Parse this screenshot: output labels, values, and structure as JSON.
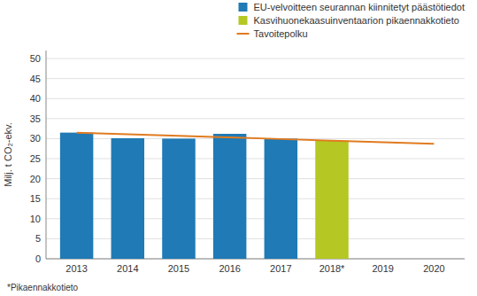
{
  "chart_data": {
    "type": "bar",
    "x": [
      2013,
      2014,
      2015,
      2016,
      2017,
      2018,
      2019,
      2020
    ],
    "series": [
      {
        "name": "EU-velvoitteen seurannan kiinnitetyt päästötiedot",
        "type": "bar",
        "color": "#1f7ab5",
        "values": [
          31.5,
          30.1,
          30.0,
          31.2,
          30.0,
          null,
          null,
          null
        ]
      },
      {
        "name": "Kasvihuonekaasuinventaarion pikaennakkotieto",
        "type": "bar",
        "color": "#b5c722",
        "values": [
          null,
          null,
          null,
          null,
          null,
          29.5,
          null,
          null
        ]
      },
      {
        "name": "Tavoitepolku",
        "type": "line",
        "color": "#e07b20",
        "values": [
          31.5,
          31.1,
          30.7,
          30.3,
          29.9,
          29.5,
          29.1,
          28.7
        ]
      }
    ],
    "y_label": "Milj. t CO₂-ekv.",
    "xlim": [
      2012.4,
      2020.6
    ],
    "xticks": [
      2013,
      2014,
      2015,
      2016,
      2017,
      {
        "value": 2018,
        "label": "2018*"
      },
      2019,
      2020
    ],
    "ylim": [
      0,
      52
    ],
    "yticks": [
      0,
      5,
      10,
      15,
      20,
      25,
      30,
      35,
      40,
      45,
      50
    ],
    "grid": true,
    "legend": "upper right",
    "annotations": [
      "*Pikaennakkotieto"
    ]
  }
}
